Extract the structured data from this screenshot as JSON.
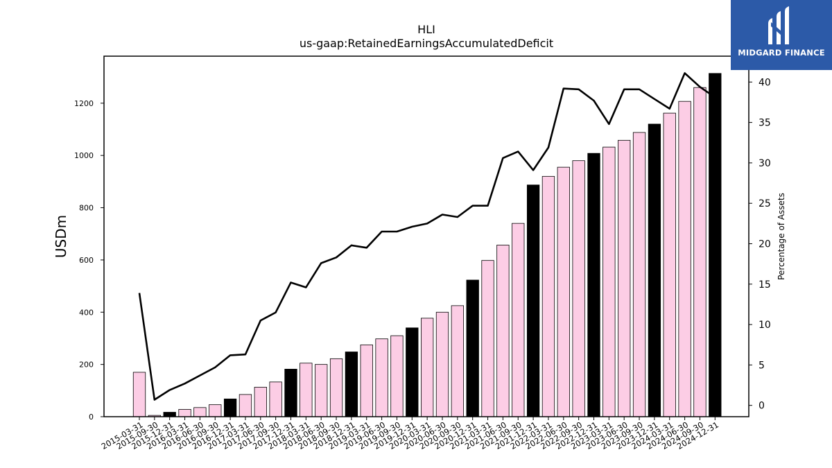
{
  "chart_data": {
    "type": "bar",
    "title": "HLI",
    "subtitle": "us-gaap:RetainedEarningsAccumulatedDeficit",
    "ylabel": "USDm",
    "y2label": "Percentage of Assets",
    "ylim": [
      0,
      1380
    ],
    "y2lim": [
      -1.4,
      43.2
    ],
    "yticks": [
      0,
      200,
      400,
      600,
      800,
      1000,
      1200
    ],
    "y2ticks": [
      0,
      5,
      10,
      15,
      20,
      25,
      30,
      35,
      40
    ],
    "grid": false,
    "categories": [
      "2015-03-31",
      "2015-09-30",
      "2015-12-31",
      "2016-03-31",
      "2016-06-30",
      "2016-09-30",
      "2016-12-31",
      "2017-03-31",
      "2017-06-30",
      "2017-09-30",
      "2017-12-31",
      "2018-03-31",
      "2018-06-30",
      "2018-09-30",
      "2018-12-31",
      "2019-03-31",
      "2019-06-30",
      "2019-09-30",
      "2019-12-31",
      "2020-03-31",
      "2020-06-30",
      "2020-09-30",
      "2020-12-31",
      "2021-03-31",
      "2021-06-30",
      "2021-09-30",
      "2021-12-31",
      "2022-03-31",
      "2022-06-30",
      "2022-09-30",
      "2022-12-31",
      "2023-03-31",
      "2023-06-30",
      "2023-09-30",
      "2023-12-31",
      "2024-03-31",
      "2024-06-30",
      "2024-09-30",
      "2024-12-31"
    ],
    "series": [
      {
        "type": "bar",
        "values": [
          170,
          5,
          17,
          28,
          35,
          46,
          68,
          85,
          113,
          133,
          182,
          205,
          200,
          222,
          248,
          275,
          298,
          310,
          340,
          377,
          400,
          425,
          523,
          598,
          657,
          740,
          887,
          920,
          955,
          980,
          1008,
          1032,
          1058,
          1088,
          1120,
          1162,
          1207,
          1260,
          1314
        ],
        "highlight": [
          false,
          false,
          true,
          false,
          false,
          false,
          true,
          false,
          false,
          false,
          true,
          false,
          false,
          false,
          true,
          false,
          false,
          false,
          true,
          false,
          false,
          false,
          true,
          false,
          false,
          false,
          true,
          false,
          false,
          false,
          true,
          false,
          false,
          false,
          true,
          false,
          false,
          false,
          true
        ],
        "colors": {
          "normal": "#fccde5",
          "highlight": "#000000"
        }
      },
      {
        "type": "line",
        "axis": "right",
        "values": [
          13.9,
          0.7,
          1.9,
          2.7,
          3.7,
          4.7,
          6.2,
          6.3,
          10.5,
          11.5,
          15.2,
          14.6,
          17.6,
          18.3,
          19.8,
          19.5,
          21.5,
          21.5,
          22.1,
          22.5,
          23.6,
          23.3,
          24.7,
          24.7,
          30.6,
          31.4,
          29.1,
          31.9,
          39.2,
          39.1,
          37.7,
          34.8,
          39.1,
          39.1,
          37.9,
          36.7,
          41.1,
          39.4,
          38.1
        ],
        "color": "#000000"
      }
    ]
  },
  "logo": {
    "text": "MIDGARD FINANCE",
    "background": "#2c5aa8"
  }
}
